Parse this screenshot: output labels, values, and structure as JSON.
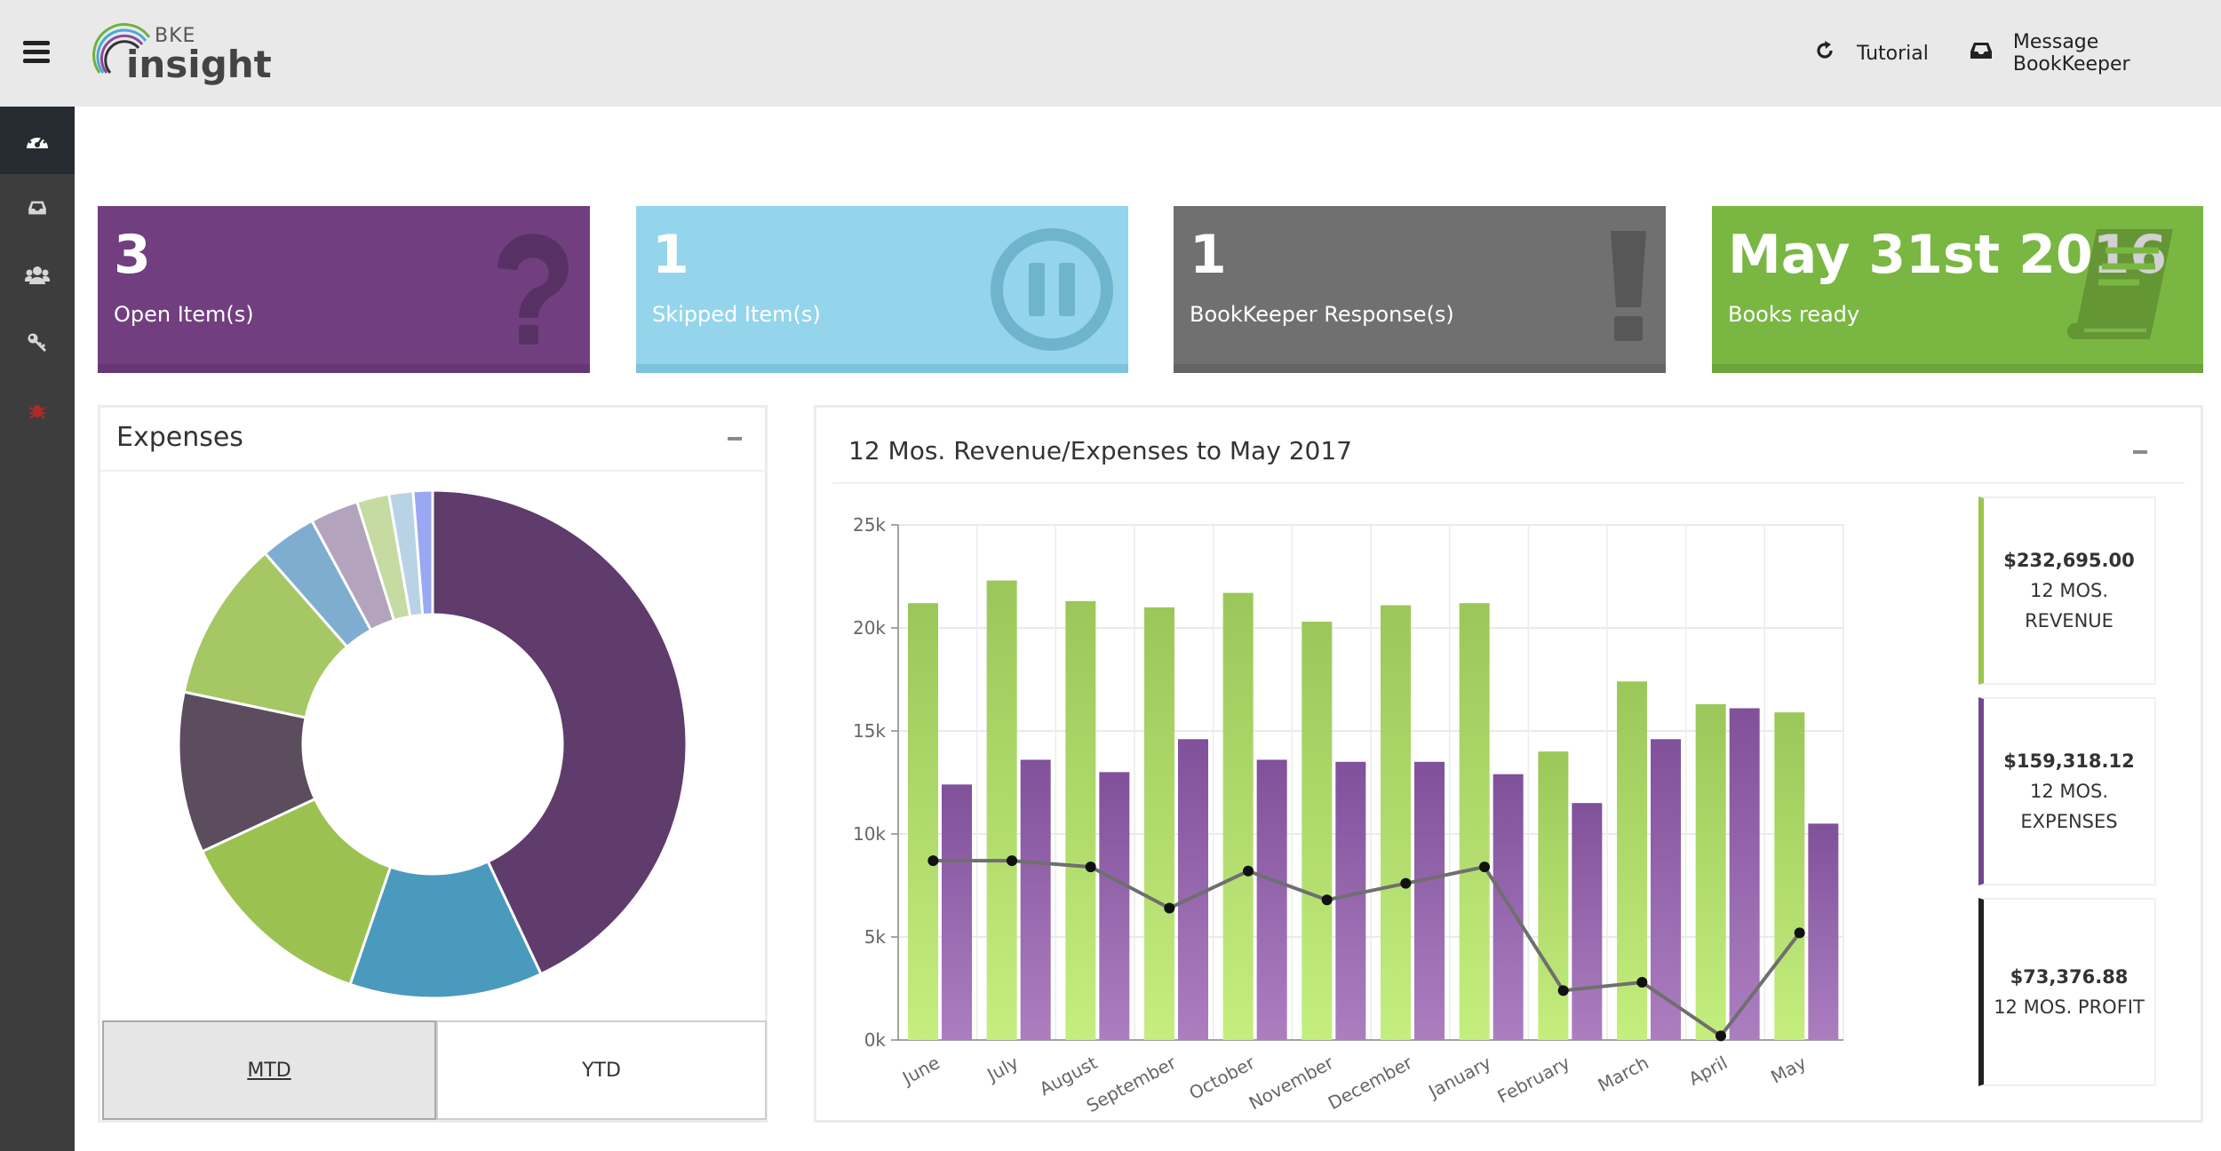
{
  "header": {
    "logo_small": "BKE",
    "logo_big": "insight",
    "tutorial_label": "Tutorial",
    "message_label": "Message BookKeeper"
  },
  "sidebar": {
    "items": [
      {
        "icon": "dashboard-icon",
        "active": true
      },
      {
        "icon": "inbox-icon"
      },
      {
        "icon": "users-icon"
      },
      {
        "icon": "key-icon"
      },
      {
        "icon": "bug-icon",
        "color": "#b02a24"
      }
    ]
  },
  "cards": [
    {
      "value": "3",
      "label": "Open Item(s)",
      "icon": "question-icon",
      "color": "#713f80"
    },
    {
      "value": "1",
      "label": "Skipped Item(s)",
      "icon": "pause-icon",
      "color": "#94d5ec"
    },
    {
      "value": "1",
      "label": "BookKeeper Response(s)",
      "icon": "exclamation-icon",
      "color": "#707070"
    },
    {
      "value": "May 31st 2016",
      "label": "Books ready",
      "icon": "book-icon",
      "color": "#7ab742"
    }
  ],
  "expenses": {
    "title": "Expenses",
    "tabs": {
      "mtd": "MTD",
      "ytd": "YTD"
    }
  },
  "revenue": {
    "title": "12 Mos. Revenue/Expenses to May 2017",
    "summary": {
      "revenue_amount": "$232,695.00",
      "revenue_label_1": "12 MOS.",
      "revenue_label_2": "REVENUE",
      "expenses_amount": "$159,318.12",
      "expenses_label_1": "12 MOS.",
      "expenses_label_2": "EXPENSES",
      "profit_amount": "$73,376.88",
      "profit_label": "12 MOS. PROFIT"
    }
  },
  "chart_data": [
    {
      "type": "pie",
      "donut": true,
      "values": [
        42,
        12,
        12.5,
        10,
        10,
        3.5,
        3,
        2,
        1.5,
        1.2
      ],
      "colors": [
        "#5f3c6b",
        "#4a9abd",
        "#9bc150",
        "#5b4d5d",
        "#a5c764",
        "#7fadd0",
        "#b4a3bc",
        "#c5dba1",
        "#b9d3e6",
        "#9aa7f2"
      ]
    },
    {
      "type": "bar",
      "categories": [
        "June",
        "July",
        "August",
        "September",
        "October",
        "November",
        "December",
        "January",
        "February",
        "March",
        "April",
        "May"
      ],
      "series": [
        {
          "values": [
            21200,
            22300,
            21300,
            21000,
            21700,
            20300,
            21100,
            21200,
            14000,
            17400,
            16300,
            15900
          ],
          "color": "#9dcc5a"
        },
        {
          "values": [
            12400,
            13600,
            13000,
            14600,
            13600,
            13500,
            13500,
            12900,
            11500,
            14600,
            16100,
            10500
          ],
          "color": "#8d5aa0"
        },
        {
          "type": "line",
          "values": [
            8700,
            8700,
            8400,
            6400,
            8200,
            6800,
            7600,
            8400,
            2400,
            2800,
            200,
            5200
          ],
          "color": "#6f6f6f"
        }
      ],
      "ylim": [
        0,
        25000
      ],
      "yticks": [
        "0k",
        "5k",
        "10k",
        "15k",
        "20k",
        "25k"
      ],
      "grid": true
    }
  ]
}
